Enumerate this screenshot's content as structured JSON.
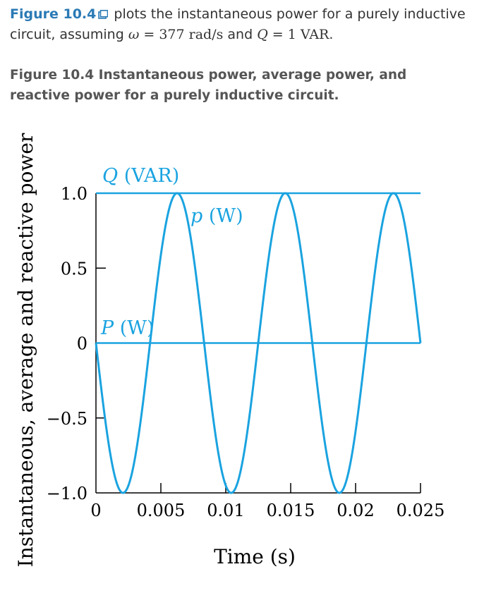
{
  "intro": {
    "figure_link": "Figure 10.4",
    "text_1": " plots the instantaneous power for a purely inductive circuit, assuming ",
    "omega_symbol": "ω",
    "equals_1": " = ",
    "omega_value": "377 rad/s",
    "text_and": " and ",
    "q_symbol": "Q",
    "equals_2": " = ",
    "q_value": "1 VAR",
    "period": "."
  },
  "caption": "Figure 10.4 Instantaneous power, average power, and reactive power for a purely inductive circuit.",
  "chart_data": {
    "type": "line",
    "xlabel": "Time (s)",
    "ylabel": "Instantaneous, average and reactive power",
    "xlim": [
      0,
      0.025
    ],
    "ylim": [
      -1.0,
      1.0
    ],
    "x_ticks": [
      "0",
      "0.005",
      "0.01",
      "0.015",
      "0.02",
      "0.025"
    ],
    "y_ticks": [
      "1.0",
      "0.5",
      "0",
      "−0.5",
      "−1.0"
    ],
    "y_tick_values": [
      1.0,
      0.5,
      0,
      -0.5,
      -1.0
    ],
    "x_tick_values": [
      0,
      0.005,
      0.01,
      0.015,
      0.02,
      0.025
    ],
    "color": "#1aa3e0",
    "series": [
      {
        "name": "p (W)",
        "expression": "-sin(2*377*t)",
        "omega": 377
      },
      {
        "name": "Q (VAR)",
        "constant": 1.0
      },
      {
        "name": "P (W)",
        "constant": 0.0
      }
    ],
    "annotations": [
      {
        "text": "Q (VAR)",
        "italic": "Q",
        "rest": " (VAR)"
      },
      {
        "text": "p (W)",
        "italic": "p",
        "rest": " (W)"
      },
      {
        "text": "P (W)",
        "italic": "P",
        "rest": " (W)"
      }
    ]
  }
}
